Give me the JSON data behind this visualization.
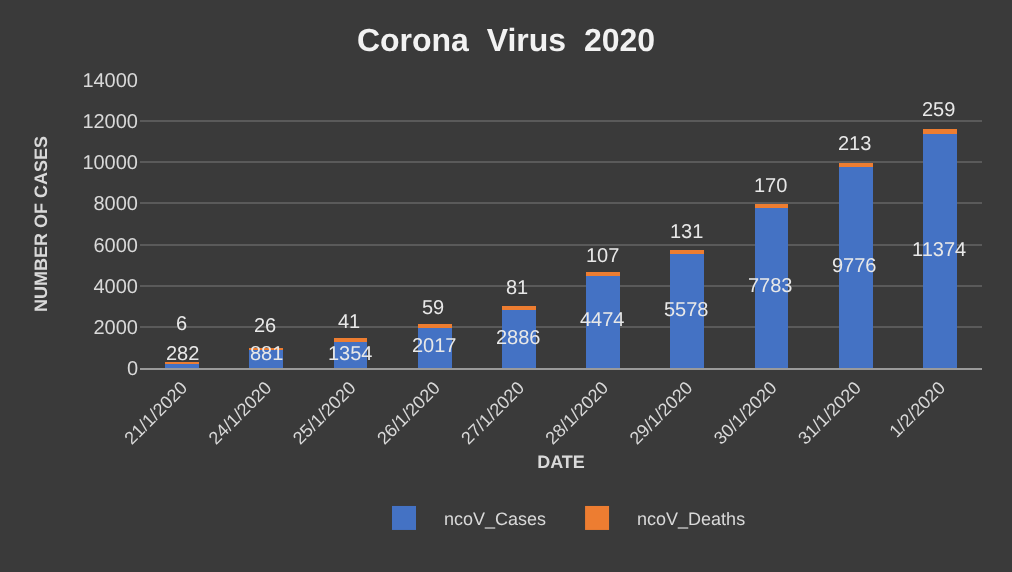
{
  "chart_data": {
    "type": "bar",
    "title": "Corona  Virus  2020",
    "xlabel": "DATE",
    "ylabel": "NUMBER OF CASES",
    "categories": [
      "21/1/2020",
      "24/1/2020",
      "25/1/2020",
      "26/1/2020",
      "27/1/2020",
      "28/1/2020",
      "29/1/2020",
      "30/1/2020",
      "31/1/2020",
      "1/2/2020"
    ],
    "series": [
      {
        "name": "ncoV_Cases",
        "color": "#4472c4",
        "values": [
          282,
          881,
          1354,
          2017,
          2886,
          4474,
          5578,
          7783,
          9776,
          11374
        ]
      },
      {
        "name": "ncoV_Deaths",
        "color": "#ed7d31",
        "values": [
          6,
          26,
          41,
          59,
          81,
          107,
          131,
          170,
          213,
          259
        ]
      }
    ],
    "stacked": true,
    "data_labels": true,
    "ylim": [
      0,
      14000
    ],
    "yticks": [
      0,
      2000,
      4000,
      6000,
      8000,
      10000,
      12000,
      14000
    ],
    "grid": "y",
    "legend": "bottom"
  }
}
